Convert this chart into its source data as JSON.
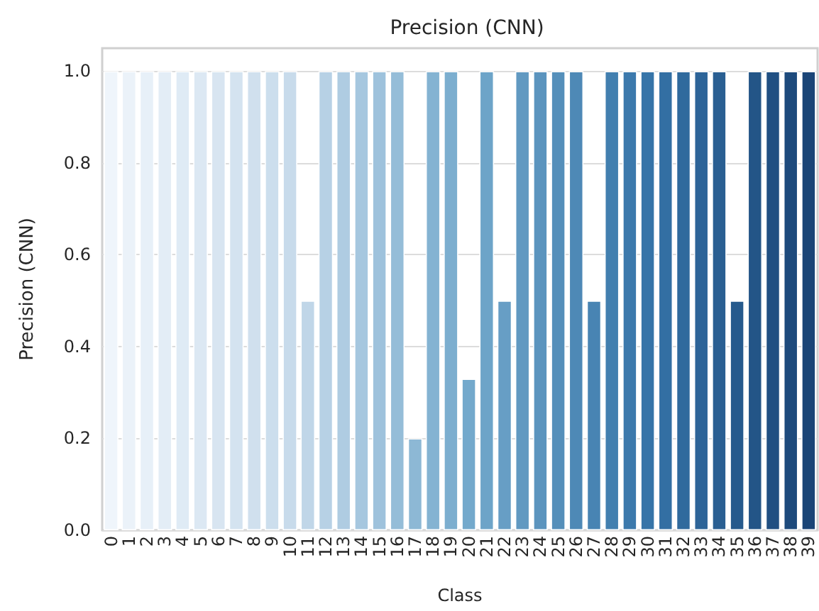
{
  "chart_data": {
    "type": "bar",
    "title": "Precision (CNN)",
    "xlabel": "Class",
    "ylabel": "Precision (CNN)",
    "categories": [
      "0",
      "1",
      "2",
      "3",
      "4",
      "5",
      "6",
      "7",
      "8",
      "9",
      "10",
      "11",
      "12",
      "13",
      "14",
      "15",
      "16",
      "17",
      "18",
      "19",
      "20",
      "21",
      "22",
      "23",
      "24",
      "25",
      "26",
      "27",
      "28",
      "29",
      "30",
      "31",
      "32",
      "33",
      "34",
      "35",
      "36",
      "37",
      "38",
      "39"
    ],
    "values": [
      1,
      1,
      1,
      1,
      1,
      1,
      1,
      1,
      1,
      1,
      1,
      0.5,
      1,
      1,
      1,
      1,
      1,
      0.2,
      1,
      1,
      0.33,
      1,
      0.5,
      1,
      1,
      1,
      1,
      0.5,
      1,
      1,
      1,
      1,
      1,
      1,
      1,
      0.5,
      1,
      1,
      1,
      1
    ],
    "colors": [
      "#eff5fb",
      "#ebf2f9",
      "#e7f0f8",
      "#e3edf6",
      "#dfebf5",
      "#dce8f3",
      "#d8e5f1",
      "#d4e3f0",
      "#d0e0ee",
      "#ccdeed",
      "#c8dbeb",
      "#c0d6e8",
      "#b7d1e5",
      "#afcce2",
      "#a6c7df",
      "#9ec2dc",
      "#95bdd8",
      "#8db8d5",
      "#84b3d2",
      "#7caecf",
      "#73a9cc",
      "#6da4c8",
      "#679ec5",
      "#6199c1",
      "#5b94be",
      "#558fba",
      "#4e89b6",
      "#4884b3",
      "#427faf",
      "#3c79ac",
      "#3674a8",
      "#336fa3",
      "#306a9d",
      "#2d6498",
      "#2a5f92",
      "#265a8d",
      "#235587",
      "#204f82",
      "#1d4a7c",
      "#1a4577"
    ],
    "ylim": [
      0,
      1.05
    ],
    "yticks": [
      {
        "value": 0,
        "label": "0.0"
      },
      {
        "value": 0.2,
        "label": "0.2"
      },
      {
        "value": 0.4,
        "label": "0.4"
      },
      {
        "value": 0.6,
        "label": "0.6"
      },
      {
        "value": 0.8,
        "label": "0.8"
      },
      {
        "value": 1,
        "label": "1.0"
      }
    ],
    "grid": "y"
  }
}
